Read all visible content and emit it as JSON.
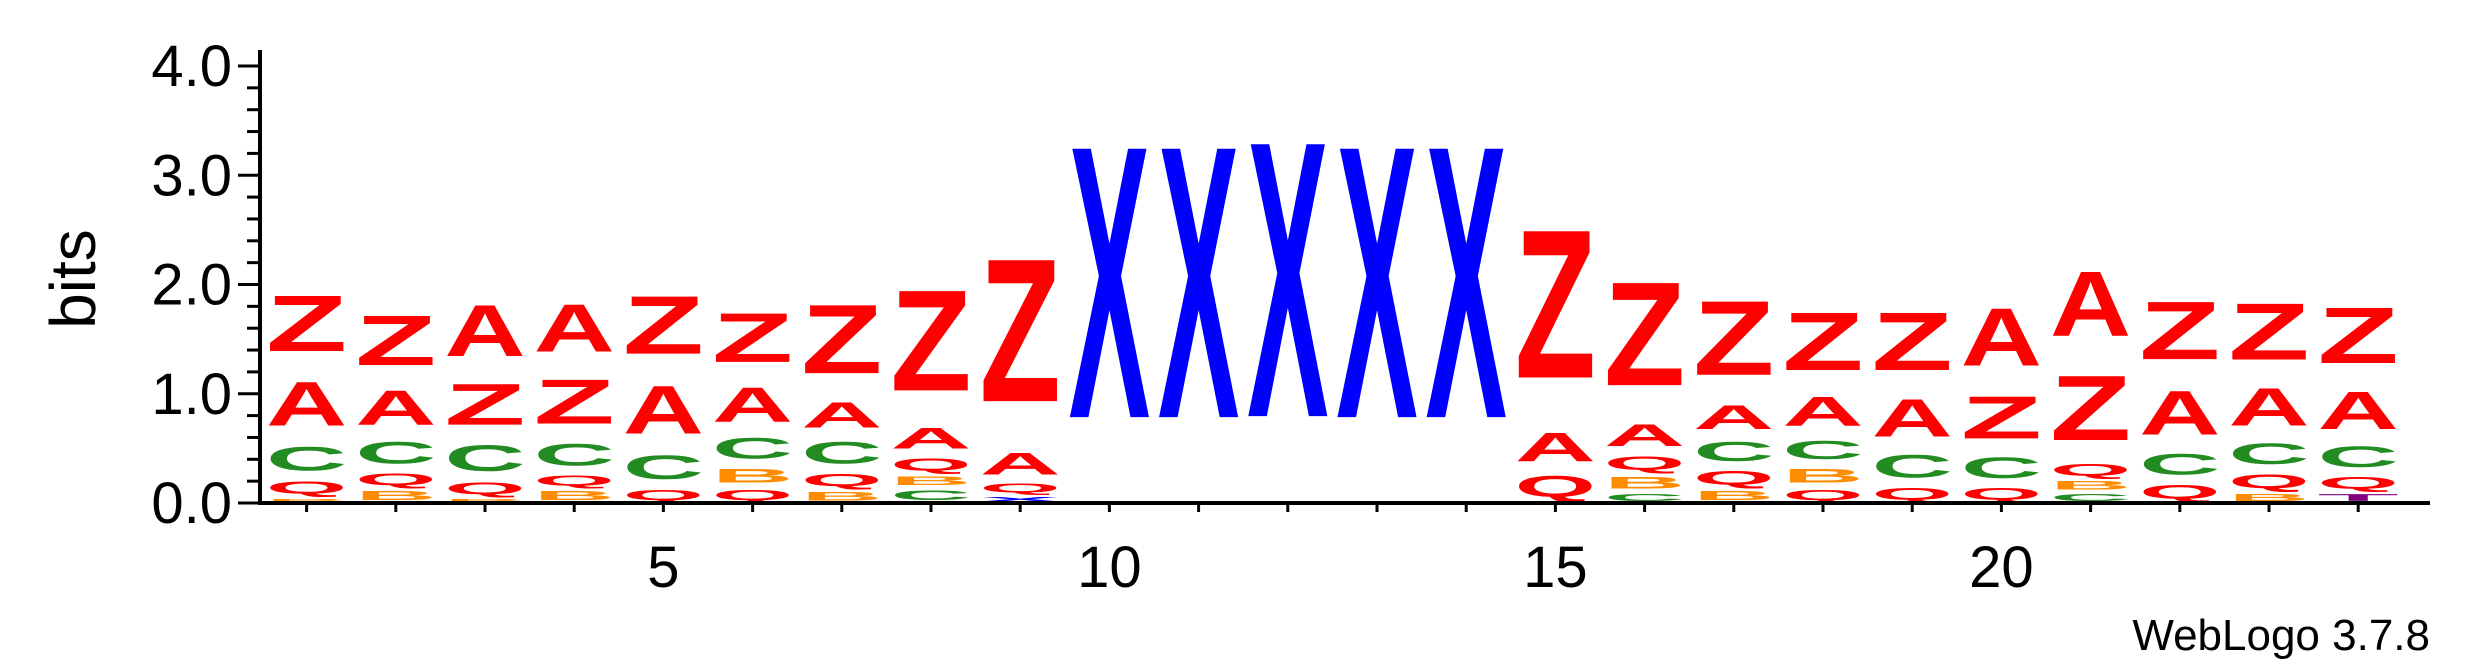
{
  "chart_data": {
    "type": "sequence-logo",
    "title": "",
    "xlabel": "",
    "ylabel": "bits",
    "ylim": [
      0,
      4.0
    ],
    "y_ticks": [
      0.0,
      1.0,
      2.0,
      3.0,
      4.0
    ],
    "y_tick_labels": [
      "0.0",
      "1.0",
      "2.0",
      "3.0",
      "4.0"
    ],
    "x_ticks": [
      5,
      10,
      15,
      20
    ],
    "x_tick_labels": [
      "5",
      "10",
      "15",
      "20"
    ],
    "positions": [
      1,
      2,
      3,
      4,
      5,
      6,
      7,
      8,
      9,
      10,
      11,
      12,
      13,
      14,
      15,
      16,
      17,
      18,
      19,
      20,
      21,
      22,
      23,
      24
    ],
    "colors": {
      "Z": "#ff0000",
      "A": "#ff0000",
      "Q": "#ff0000",
      "C": "#228b22",
      "B": "#ff8c00",
      "X": "#0000ff",
      "T": "#800080"
    },
    "stacks": [
      [
        {
          "letter": "B",
          "height": 0.05
        },
        {
          "letter": "Q",
          "height": 0.18
        },
        {
          "letter": "C",
          "height": 0.35
        },
        {
          "letter": "A",
          "height": 0.65
        },
        {
          "letter": "Z",
          "height": 0.82
        }
      ],
      [
        {
          "letter": "B",
          "height": 0.13
        },
        {
          "letter": "Q",
          "height": 0.17
        },
        {
          "letter": "C",
          "height": 0.32
        },
        {
          "letter": "A",
          "height": 0.5
        },
        {
          "letter": "Z",
          "height": 0.73
        }
      ],
      [
        {
          "letter": "B",
          "height": 0.05
        },
        {
          "letter": "Q",
          "height": 0.17
        },
        {
          "letter": "C",
          "height": 0.38
        },
        {
          "letter": "Z",
          "height": 0.6
        },
        {
          "letter": "A",
          "height": 0.75
        }
      ],
      [
        {
          "letter": "B",
          "height": 0.13
        },
        {
          "letter": "Q",
          "height": 0.15
        },
        {
          "letter": "C",
          "height": 0.32
        },
        {
          "letter": "Z",
          "height": 0.65
        },
        {
          "letter": "A",
          "height": 0.69
        }
      ],
      [
        {
          "letter": "Q",
          "height": 0.15
        },
        {
          "letter": "C",
          "height": 0.35
        },
        {
          "letter": "A",
          "height": 0.7
        },
        {
          "letter": "Z",
          "height": 0.85
        }
      ],
      [
        {
          "letter": "Q",
          "height": 0.15
        },
        {
          "letter": "B",
          "height": 0.2
        },
        {
          "letter": "C",
          "height": 0.3
        },
        {
          "letter": "A",
          "height": 0.5
        },
        {
          "letter": "Z",
          "height": 0.72
        }
      ],
      [
        {
          "letter": "B",
          "height": 0.12
        },
        {
          "letter": "Q",
          "height": 0.18
        },
        {
          "letter": "C",
          "height": 0.32
        },
        {
          "letter": "A",
          "height": 0.37
        },
        {
          "letter": "Z",
          "height": 1.01
        }
      ],
      [
        {
          "letter": "C",
          "height": 0.14
        },
        {
          "letter": "B",
          "height": 0.12
        },
        {
          "letter": "Q",
          "height": 0.18
        },
        {
          "letter": "A",
          "height": 0.3
        },
        {
          "letter": "Z",
          "height": 1.48
        }
      ],
      [
        {
          "letter": "X",
          "height": 0.07
        },
        {
          "letter": "Q",
          "height": 0.13
        },
        {
          "letter": "A",
          "height": 0.32
        },
        {
          "letter": "Z",
          "height": 2.1
        }
      ],
      [
        {
          "letter": "X",
          "height": 4.0
        }
      ],
      [
        {
          "letter": "X",
          "height": 4.0
        }
      ],
      [
        {
          "letter": "X",
          "height": 4.05
        }
      ],
      [
        {
          "letter": "X",
          "height": 4.0
        }
      ],
      [
        {
          "letter": "X",
          "height": 4.0
        }
      ],
      [
        {
          "letter": "Q",
          "height": 0.3
        },
        {
          "letter": "A",
          "height": 0.42
        },
        {
          "letter": "Z",
          "height": 2.18
        }
      ],
      [
        {
          "letter": "C",
          "height": 0.1
        },
        {
          "letter": "B",
          "height": 0.17
        },
        {
          "letter": "Q",
          "height": 0.19
        },
        {
          "letter": "A",
          "height": 0.32
        },
        {
          "letter": "Z",
          "height": 1.52
        }
      ],
      [
        {
          "letter": "B",
          "height": 0.13
        },
        {
          "letter": "Q",
          "height": 0.2
        },
        {
          "letter": "C",
          "height": 0.28
        },
        {
          "letter": "A",
          "height": 0.35
        },
        {
          "letter": "Z",
          "height": 1.09
        }
      ],
      [
        {
          "letter": "Q",
          "height": 0.15
        },
        {
          "letter": "B",
          "height": 0.2
        },
        {
          "letter": "C",
          "height": 0.27
        },
        {
          "letter": "A",
          "height": 0.43
        },
        {
          "letter": "Z",
          "height": 0.85
        }
      ],
      [
        {
          "letter": "Q",
          "height": 0.17
        },
        {
          "letter": "C",
          "height": 0.33
        },
        {
          "letter": "A",
          "height": 0.55
        },
        {
          "letter": "Z",
          "height": 0.85
        }
      ],
      [
        {
          "letter": "Q",
          "height": 0.17
        },
        {
          "letter": "C",
          "height": 0.3
        },
        {
          "letter": "Z",
          "height": 0.62
        },
        {
          "letter": "A",
          "height": 0.85
        }
      ],
      [
        {
          "letter": "C",
          "height": 0.1
        },
        {
          "letter": "B",
          "height": 0.12
        },
        {
          "letter": "Q",
          "height": 0.17
        },
        {
          "letter": "Z",
          "height": 0.95
        },
        {
          "letter": "A",
          "height": 0.95
        }
      ],
      [
        {
          "letter": "Q",
          "height": 0.2
        },
        {
          "letter": "C",
          "height": 0.3
        },
        {
          "letter": "A",
          "height": 0.65
        },
        {
          "letter": "Z",
          "height": 0.85
        }
      ],
      [
        {
          "letter": "B",
          "height": 0.1
        },
        {
          "letter": "Q",
          "height": 0.2
        },
        {
          "letter": "C",
          "height": 0.3
        },
        {
          "letter": "A",
          "height": 0.55
        },
        {
          "letter": "Z",
          "height": 0.83
        }
      ],
      [
        {
          "letter": "T",
          "height": 0.1
        },
        {
          "letter": "Q",
          "height": 0.17
        },
        {
          "letter": "C",
          "height": 0.3
        },
        {
          "letter": "A",
          "height": 0.55
        },
        {
          "letter": "Z",
          "height": 0.82
        }
      ]
    ]
  },
  "credit": "WebLogo 3.7.8"
}
